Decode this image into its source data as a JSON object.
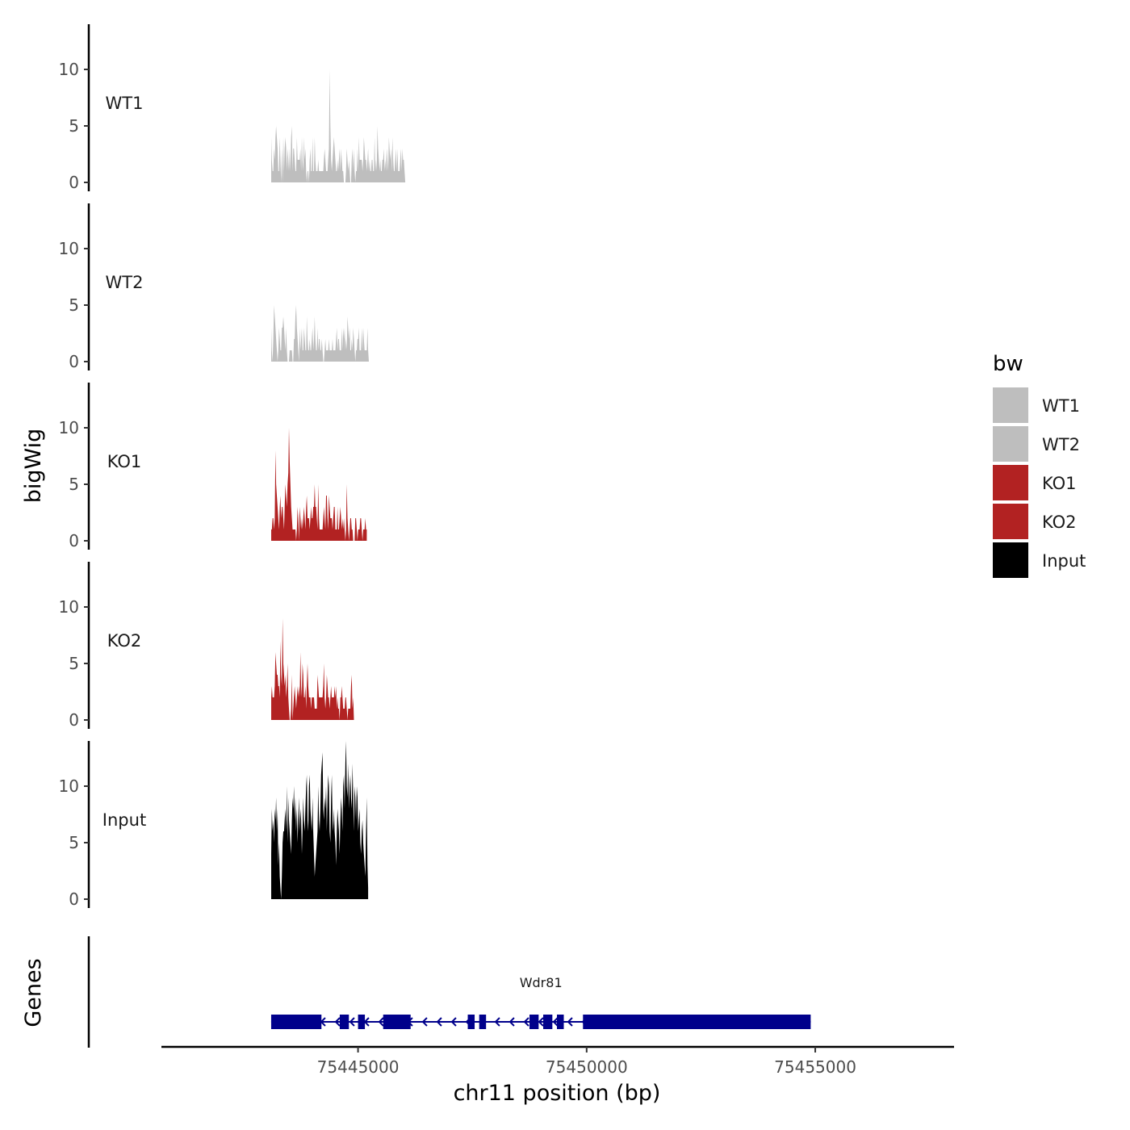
{
  "chart_data": {
    "type": "area",
    "title": "",
    "xlabel": "chr11 position (bp)",
    "ylabel": "bigWig",
    "genes_label": "Genes",
    "xlim": [
      75440700,
      75458000
    ],
    "ylim": [
      0,
      14
    ],
    "x_ticks": [
      75445000,
      75450000,
      75455000
    ],
    "x_tick_labels": [
      "75445000",
      "75450000",
      "75455000"
    ],
    "y_ticks": [
      0,
      5,
      10
    ],
    "y_tick_labels": [
      "0",
      "5",
      "10"
    ],
    "x_start": 75443100,
    "x_step": 15.6,
    "legend": {
      "title": "bw",
      "placement": "right",
      "entries": [
        {
          "label": "WT1",
          "color": "#bebebe"
        },
        {
          "label": "WT2",
          "color": "#bebebe"
        },
        {
          "label": "KO1",
          "color": "#b22222"
        },
        {
          "label": "KO2",
          "color": "#b22222"
        },
        {
          "label": "Input",
          "color": "#000000"
        }
      ]
    },
    "series": [
      {
        "name": "WT1",
        "color": "#bebebe",
        "values": [
          4,
          2,
          1,
          1,
          3,
          2,
          4,
          5,
          4,
          3,
          1,
          1,
          4,
          2,
          0,
          3,
          0,
          4,
          1,
          3,
          4,
          3,
          1,
          3,
          2,
          1,
          3,
          1,
          4,
          5,
          1,
          3,
          3,
          2,
          1,
          1,
          4,
          2,
          2,
          2,
          2,
          3,
          1,
          4,
          2,
          1,
          4,
          2,
          3,
          1,
          0,
          1,
          1,
          0,
          2,
          3,
          1,
          1,
          4,
          1,
          1,
          4,
          2,
          1,
          1,
          1,
          2,
          1,
          1,
          1,
          1,
          1,
          1,
          1,
          2,
          3,
          2,
          1,
          1,
          1,
          2,
          3,
          10,
          5,
          2,
          1,
          2,
          3,
          4,
          3,
          2,
          1,
          1,
          2,
          1,
          2,
          3,
          1,
          3,
          2,
          1,
          1,
          0,
          0,
          0,
          1,
          3,
          2,
          1,
          2,
          1,
          0,
          0,
          2,
          3,
          1,
          3,
          1,
          0,
          1,
          1,
          3,
          1,
          4,
          2,
          2,
          2,
          2,
          1,
          2,
          4,
          3,
          2,
          2,
          1,
          2,
          3,
          1,
          2,
          1,
          1,
          2,
          2,
          1,
          1,
          4,
          1,
          2,
          1,
          5,
          3,
          2,
          1,
          2,
          1,
          1,
          2,
          2,
          3,
          1,
          2,
          1,
          3,
          2,
          1,
          4,
          3,
          2,
          3,
          1,
          4,
          2,
          1,
          1,
          2,
          3,
          1,
          3,
          1,
          1,
          1,
          2,
          3,
          1,
          3,
          2,
          2,
          1,
          0
        ]
      },
      {
        "name": "WT2",
        "color": "#bebebe",
        "values": [
          3,
          1,
          0,
          2,
          5,
          4,
          3,
          2,
          1,
          0,
          1,
          3,
          2,
          1,
          1,
          3,
          3,
          4,
          3,
          2,
          1,
          3,
          1,
          0,
          0,
          0,
          1,
          1,
          1,
          1,
          0,
          0,
          2,
          2,
          4,
          5,
          3,
          2,
          1,
          0,
          3,
          1,
          2,
          3,
          1,
          1,
          3,
          2,
          1,
          1,
          4,
          2,
          1,
          1,
          2,
          1,
          1,
          2,
          3,
          1,
          2,
          4,
          2,
          1,
          1,
          3,
          1,
          2,
          2,
          1,
          1,
          2,
          1,
          0,
          0,
          1,
          2,
          1,
          1,
          1,
          1,
          2,
          1,
          1,
          1,
          1,
          2,
          1,
          1,
          1,
          1,
          2,
          3,
          1,
          2,
          2,
          1,
          1,
          1,
          3,
          1,
          3,
          2,
          3,
          1,
          2,
          1,
          4,
          3,
          2,
          3,
          1,
          1,
          2,
          1,
          3,
          2,
          1,
          0,
          1,
          1,
          2,
          2,
          3,
          1,
          1,
          1,
          3,
          1,
          3,
          2,
          1,
          1,
          1,
          1,
          3,
          1,
          0
        ]
      },
      {
        "name": "KO1",
        "color": "#b22222",
        "values": [
          1,
          1,
          2,
          2,
          1,
          2,
          8,
          5,
          4,
          3,
          2,
          1,
          3,
          4,
          2,
          3,
          3,
          2,
          1,
          3,
          5,
          4,
          3,
          5,
          6,
          10,
          7,
          5,
          3,
          2,
          1,
          1,
          1,
          1,
          1,
          0,
          1,
          3,
          2,
          0,
          3,
          2,
          1,
          2,
          1,
          2,
          3,
          2,
          1,
          3,
          4,
          2,
          2,
          2,
          1,
          2,
          3,
          2,
          2,
          3,
          3,
          5,
          3,
          3,
          2,
          1,
          5,
          2,
          1,
          1,
          1,
          1,
          1,
          2,
          3,
          2,
          1,
          4,
          4,
          2,
          1,
          4,
          3,
          2,
          2,
          2,
          1,
          2,
          3,
          3,
          1,
          1,
          1,
          3,
          1,
          1,
          2,
          3,
          2,
          1,
          2,
          1,
          2,
          1,
          0,
          1,
          5,
          2,
          1,
          0,
          1,
          2,
          2,
          1,
          1,
          0,
          0,
          0,
          2,
          2,
          1,
          0,
          1,
          1,
          1,
          2,
          2,
          1,
          0,
          1,
          1,
          1,
          2,
          1,
          1
        ]
      },
      {
        "name": "KO2",
        "color": "#b22222",
        "values": [
          2,
          3,
          2,
          2,
          2,
          3,
          6,
          5,
          4,
          4,
          3,
          3,
          2,
          7,
          4,
          3,
          9,
          5,
          4,
          3,
          4,
          2,
          3,
          5,
          2,
          1,
          0,
          0,
          1,
          4,
          0,
          1,
          2,
          3,
          2,
          1,
          2,
          3,
          2,
          3,
          2,
          6,
          3,
          2,
          5,
          4,
          2,
          2,
          3,
          1,
          3,
          5,
          3,
          2,
          2,
          2,
          1,
          2,
          2,
          2,
          2,
          1,
          1,
          1,
          1,
          4,
          3,
          2,
          2,
          2,
          2,
          2,
          2,
          3,
          5,
          2,
          1,
          2,
          4,
          3,
          2,
          2,
          1,
          2,
          3,
          2,
          2,
          2,
          2,
          3,
          2,
          3,
          1,
          2,
          1,
          1,
          0,
          2,
          2,
          3,
          2,
          1,
          1,
          1,
          2,
          2,
          1,
          0,
          1,
          1,
          1,
          1,
          3,
          4,
          1,
          2,
          0
        ]
      },
      {
        "name": "Input",
        "color": "#000000",
        "values": [
          4,
          8,
          6,
          7,
          5,
          8,
          7,
          9,
          6,
          8,
          3,
          5,
          2,
          1,
          0,
          2,
          5,
          6,
          6,
          7,
          8,
          6,
          10,
          5,
          9,
          7,
          6,
          5,
          4,
          7,
          9,
          8,
          10,
          7,
          9,
          6,
          8,
          5,
          7,
          9,
          6,
          8,
          7,
          4,
          6,
          9,
          7,
          6,
          8,
          10,
          11,
          7,
          6,
          10,
          11,
          8,
          7,
          6,
          9,
          6,
          4,
          2,
          3,
          4,
          5,
          6,
          10,
          7,
          6,
          8,
          11,
          12,
          13,
          8,
          7,
          9,
          8,
          10,
          6,
          9,
          11,
          10,
          6,
          5,
          9,
          11,
          7,
          6,
          8,
          6,
          5,
          3,
          6,
          8,
          7,
          6,
          4,
          7,
          9,
          8,
          6,
          10,
          11,
          8,
          12,
          14,
          10,
          9,
          12,
          8,
          10,
          11,
          9,
          8,
          12,
          9,
          6,
          10,
          9,
          7,
          10,
          9,
          6,
          7,
          8,
          5,
          4,
          6,
          7,
          5,
          4,
          3,
          2,
          6,
          9,
          3,
          1
        ]
      }
    ],
    "gene": {
      "name": "Wdr81",
      "strand": "-",
      "start": 75443100,
      "end": 75454900,
      "exons": [
        [
          75443100,
          75444200
        ],
        [
          75444600,
          75444800
        ],
        [
          75445000,
          75445150
        ],
        [
          75445550,
          75446150
        ],
        [
          75447400,
          75447550
        ],
        [
          75447650,
          75447800
        ],
        [
          75448750,
          75448950
        ],
        [
          75449050,
          75449250
        ],
        [
          75449350,
          75449500
        ],
        [
          75449920,
          75454900
        ]
      ]
    }
  }
}
